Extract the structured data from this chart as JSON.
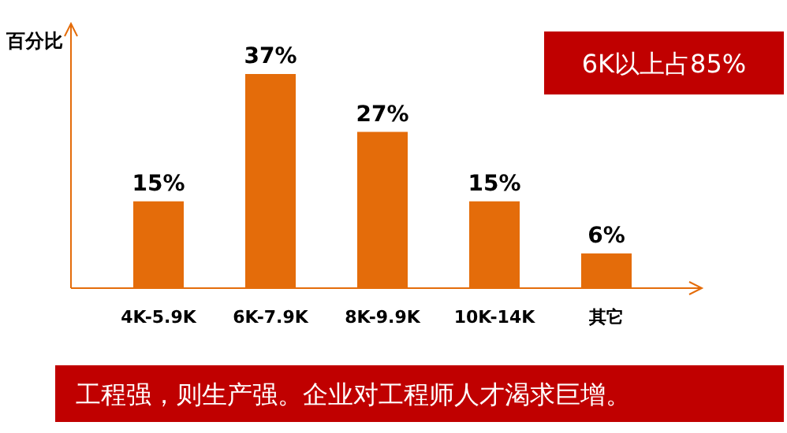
{
  "chart_data": {
    "type": "bar",
    "ylabel": "百分比",
    "categories": [
      "4K-5.9K",
      "6K-7.9K",
      "8K-9.9K",
      "10K-14K",
      "其它"
    ],
    "values": [
      15,
      37,
      27,
      15,
      6
    ],
    "color": "#e46c0a",
    "value_labels": [
      "15%",
      "37%",
      "27%",
      "15%",
      "6%"
    ],
    "annotations": [
      "6K以上占85%",
      "工程强，则生产强。企业对工程师人才渴求巨增。"
    ]
  }
}
